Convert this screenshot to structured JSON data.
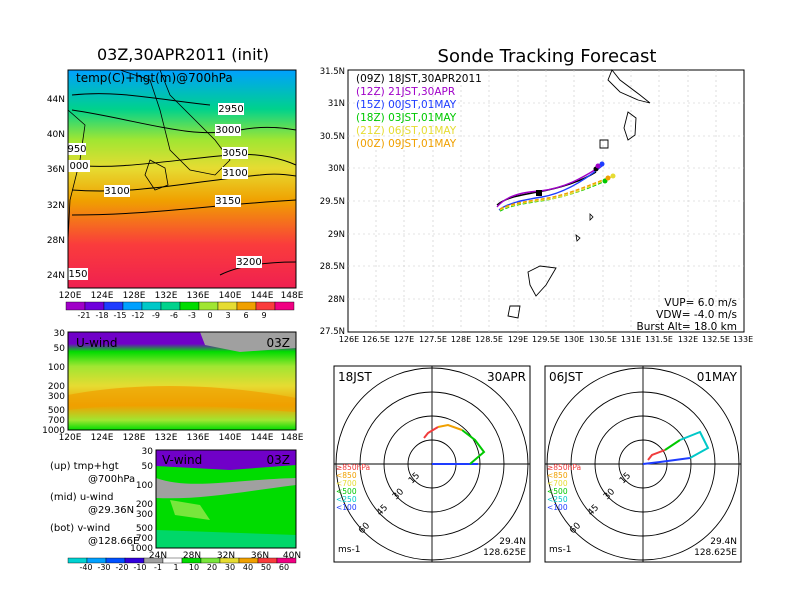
{
  "left": {
    "title": "03Z,30APR2011 (init)",
    "top_panel": {
      "label": "temp(C)+hgt(m)@700hPa",
      "lat_ticks": [
        "44N",
        "40N",
        "36N",
        "32N",
        "28N",
        "24N"
      ],
      "lon_ticks": [
        "120E",
        "124E",
        "128E",
        "132E",
        "136E",
        "140E",
        "144E",
        "148E"
      ],
      "contours": [
        "2950",
        "3000",
        "3050",
        "3100",
        "3150",
        "3200",
        "3100",
        "150",
        "000",
        "950"
      ],
      "colorbar_ticks": [
        "-21",
        "-18",
        "-15",
        "-12",
        "-9",
        "-6",
        "-3",
        "0",
        "3",
        "6",
        "9"
      ],
      "colorbar_colors": [
        "#a000c8",
        "#6e00dc",
        "#1e3cff",
        "#00a0ff",
        "#00c8c8",
        "#00d28c",
        "#00dc00",
        "#a0e632",
        "#e6dc32",
        "#f0a000",
        "#fa3c3c",
        "#f00082"
      ]
    },
    "mid_panel": {
      "label": "U-wind",
      "time": "03Z",
      "p_ticks": [
        "30",
        "50",
        "100",
        "200",
        "300",
        "500",
        "700",
        "1000"
      ],
      "lon_ticks": [
        "120E",
        "124E",
        "128E",
        "132E",
        "136E",
        "140E",
        "144E",
        "148E"
      ]
    },
    "bot_panel": {
      "label": "V-wind",
      "time": "03Z",
      "p_ticks": [
        "30",
        "50",
        "100",
        "200",
        "300",
        "500",
        "700",
        "1000"
      ],
      "lat_ticks": [
        "24N",
        "28N",
        "32N",
        "36N",
        "40N"
      ],
      "colorbar_ticks": [
        "-40",
        "-30",
        "-20",
        "-10",
        "-1",
        "1",
        "10",
        "20",
        "30",
        "40",
        "50",
        "60"
      ],
      "colorbar_colors": [
        "#00d2d2",
        "#00a0ff",
        "#0050ff",
        "#3200dc",
        "#a0a0a0",
        "#ffffff",
        "#00dc00",
        "#78e63c",
        "#e6dc32",
        "#f0a000",
        "#fa3c3c",
        "#f00082"
      ]
    },
    "legend": [
      "(up) tmp+hgt",
      "@700hPa",
      "(mid) u-wind",
      "@29.36N",
      "(bot) v-wind",
      "@128.66E"
    ]
  },
  "right": {
    "title": "Sonde Tracking Forecast",
    "lat_ticks": [
      "31.5N",
      "31N",
      "30.5N",
      "30N",
      "29.5N",
      "29N",
      "28.5N",
      "28N",
      "27.5N"
    ],
    "lon_ticks": [
      "126E",
      "126.5E",
      "127E",
      "127.5E",
      "128E",
      "128.5E",
      "129E",
      "129.5E",
      "130E",
      "130.5E",
      "131E",
      "131.5E",
      "132E",
      "132.5E",
      "133E"
    ],
    "launches": [
      {
        "label": "(09Z)  18JST,30APR2011",
        "color": "#000000"
      },
      {
        "label": "(12Z)  21JST,30APR",
        "color": "#a000c8"
      },
      {
        "label": "(15Z)  00JST,01MAY",
        "color": "#1e3cff"
      },
      {
        "label": "(18Z)  03JST,01MAY",
        "color": "#00c800"
      },
      {
        "label": "(21Z)  06JST,01MAY",
        "color": "#e6dc32"
      },
      {
        "label": "(00Z)  09JST,01MAY",
        "color": "#f0a000"
      }
    ],
    "params": [
      "VUP=  6.0 m/s",
      "VDW= -4.0 m/s",
      "Burst Alt=  18.0 km"
    ]
  },
  "polar": [
    {
      "time": "18JST",
      "date": "30APR",
      "lat": "29.4N",
      "lon": "128.625E",
      "unit": "ms-1",
      "rings": [
        "15",
        "30",
        "45",
        "60"
      ]
    },
    {
      "time": "06JST",
      "date": "01MAY",
      "lat": "29.4N",
      "lon": "128.625E",
      "unit": "ms-1",
      "rings": [
        "15",
        "30",
        "45",
        "60"
      ]
    }
  ],
  "polar_levels": [
    {
      "label": "≥850hPa",
      "color": "#f03c3c"
    },
    {
      "label": "<850",
      "color": "#f0a000"
    },
    {
      "label": "<700",
      "color": "#e6dc32"
    },
    {
      "label": "<500",
      "color": "#00c800"
    },
    {
      "label": "<250",
      "color": "#00c8c8"
    },
    {
      "label": "<100",
      "color": "#1e3cff"
    }
  ]
}
